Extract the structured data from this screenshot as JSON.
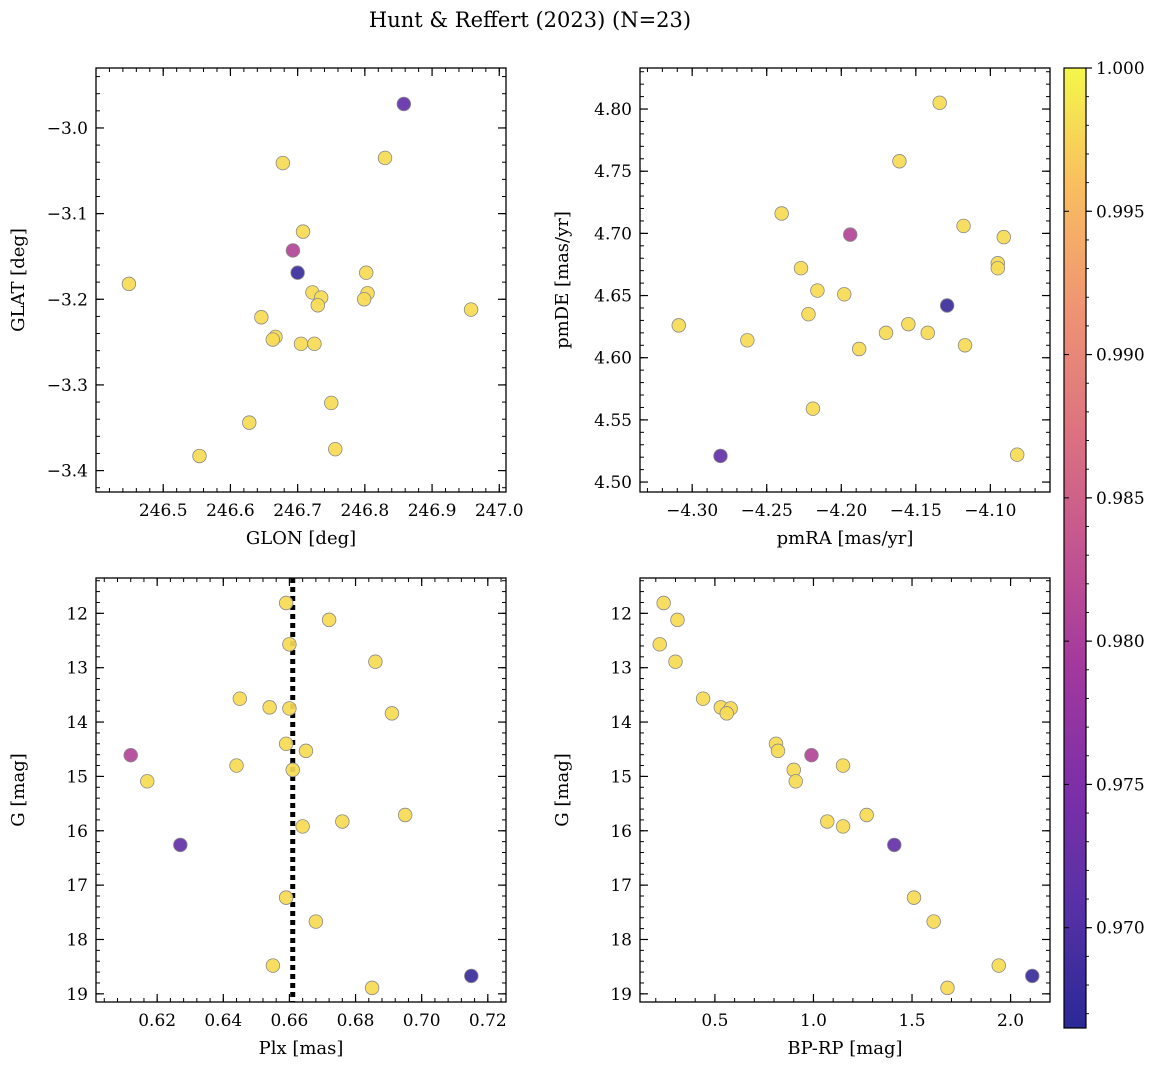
{
  "figure_title": "Hunt & Reffert (2023) (N=23)",
  "colors": {
    "plx_line": "#000000",
    "marker_edge": "#8a8a8a"
  },
  "chart_data": [
    {
      "id": "glon-glat",
      "type": "scatter",
      "xlabel": "GLON [deg]",
      "ylabel": "GLAT [deg]",
      "xlim": [
        246.4,
        247.01
      ],
      "ylim": [
        -3.425,
        -2.93
      ],
      "y_inverted": false,
      "xticks": [
        246.5,
        246.6,
        246.7,
        246.8,
        246.9,
        247.0
      ],
      "xtick_labels": [
        "246.5",
        "246.6",
        "246.7",
        "246.8",
        "246.9",
        "247.0"
      ],
      "yticks": [
        -3.4,
        -3.3,
        -3.2,
        -3.1,
        -3.0
      ],
      "ytick_labels": [
        "−3.4",
        "−3.3",
        "−3.2",
        "−3.1",
        "−3.0"
      ],
      "points": [
        {
          "x": 246.858,
          "y": -2.972,
          "p": 0.972
        },
        {
          "x": 246.83,
          "y": -3.035,
          "p": 0.998
        },
        {
          "x": 246.678,
          "y": -3.041,
          "p": 0.998
        },
        {
          "x": 246.708,
          "y": -3.121,
          "p": 0.998
        },
        {
          "x": 246.693,
          "y": -3.143,
          "p": 0.981
        },
        {
          "x": 246.7,
          "y": -3.169,
          "p": 0.968
        },
        {
          "x": 246.802,
          "y": -3.169,
          "p": 0.998
        },
        {
          "x": 246.449,
          "y": -3.182,
          "p": 0.998
        },
        {
          "x": 246.722,
          "y": -3.192,
          "p": 0.998
        },
        {
          "x": 246.804,
          "y": -3.193,
          "p": 0.998
        },
        {
          "x": 246.735,
          "y": -3.198,
          "p": 0.998
        },
        {
          "x": 246.799,
          "y": -3.2,
          "p": 0.998
        },
        {
          "x": 246.73,
          "y": -3.207,
          "p": 0.998
        },
        {
          "x": 246.958,
          "y": -3.212,
          "p": 0.998
        },
        {
          "x": 246.646,
          "y": -3.221,
          "p": 0.998
        },
        {
          "x": 246.667,
          "y": -3.244,
          "p": 0.998
        },
        {
          "x": 246.663,
          "y": -3.247,
          "p": 0.998
        },
        {
          "x": 246.705,
          "y": -3.252,
          "p": 0.998
        },
        {
          "x": 246.725,
          "y": -3.252,
          "p": 0.998
        },
        {
          "x": 246.75,
          "y": -3.321,
          "p": 0.998
        },
        {
          "x": 246.628,
          "y": -3.344,
          "p": 0.998
        },
        {
          "x": 246.756,
          "y": -3.375,
          "p": 0.998
        },
        {
          "x": 246.554,
          "y": -3.383,
          "p": 0.998
        }
      ]
    },
    {
      "id": "pmra-pmde",
      "type": "scatter",
      "xlabel": "pmRA [mas/yr]",
      "ylabel": "pmDE [mas/yr]",
      "xlim": [
        -4.335,
        -4.06
      ],
      "ylim": [
        4.492,
        4.833
      ],
      "y_inverted": false,
      "xticks": [
        -4.3,
        -4.25,
        -4.2,
        -4.15,
        -4.1
      ],
      "xtick_labels": [
        "−4.30",
        "−4.25",
        "−4.20",
        "−4.15",
        "−4.10"
      ],
      "yticks": [
        4.5,
        4.55,
        4.6,
        4.65,
        4.7,
        4.75,
        4.8
      ],
      "ytick_labels": [
        "4.50",
        "4.55",
        "4.60",
        "4.65",
        "4.70",
        "4.75",
        "4.80"
      ],
      "points": [
        {
          "x": -4.134,
          "y": 4.805,
          "p": 0.998
        },
        {
          "x": -4.161,
          "y": 4.758,
          "p": 0.998
        },
        {
          "x": -4.24,
          "y": 4.716,
          "p": 0.998
        },
        {
          "x": -4.118,
          "y": 4.706,
          "p": 0.998
        },
        {
          "x": -4.194,
          "y": 4.699,
          "p": 0.981
        },
        {
          "x": -4.091,
          "y": 4.697,
          "p": 0.998
        },
        {
          "x": -4.095,
          "y": 4.676,
          "p": 0.998
        },
        {
          "x": -4.095,
          "y": 4.672,
          "p": 0.998
        },
        {
          "x": -4.227,
          "y": 4.672,
          "p": 0.998
        },
        {
          "x": -4.216,
          "y": 4.654,
          "p": 0.998
        },
        {
          "x": -4.198,
          "y": 4.651,
          "p": 0.998
        },
        {
          "x": -4.129,
          "y": 4.642,
          "p": 0.968
        },
        {
          "x": -4.222,
          "y": 4.635,
          "p": 0.998
        },
        {
          "x": -4.155,
          "y": 4.627,
          "p": 0.998
        },
        {
          "x": -4.309,
          "y": 4.626,
          "p": 0.998
        },
        {
          "x": -4.17,
          "y": 4.62,
          "p": 0.998
        },
        {
          "x": -4.142,
          "y": 4.62,
          "p": 0.998
        },
        {
          "x": -4.263,
          "y": 4.614,
          "p": 0.998
        },
        {
          "x": -4.117,
          "y": 4.61,
          "p": 0.998
        },
        {
          "x": -4.188,
          "y": 4.607,
          "p": 0.998
        },
        {
          "x": -4.219,
          "y": 4.559,
          "p": 0.998
        },
        {
          "x": -4.082,
          "y": 4.522,
          "p": 0.998
        },
        {
          "x": -4.281,
          "y": 4.521,
          "p": 0.972
        }
      ]
    },
    {
      "id": "plx-g",
      "type": "scatter",
      "xlabel": "Plx [mas]",
      "ylabel": "G [mag]",
      "xlim": [
        0.6015,
        0.7255
      ],
      "ylim": [
        11.35,
        19.15
      ],
      "y_inverted": true,
      "vline": 0.661,
      "xticks": [
        0.62,
        0.64,
        0.66,
        0.68,
        0.7,
        0.72
      ],
      "xtick_labels": [
        "0.62",
        "0.64",
        "0.66",
        "0.68",
        "0.70",
        "0.72"
      ],
      "yticks": [
        12,
        13,
        14,
        15,
        16,
        17,
        18,
        19
      ],
      "ytick_labels": [
        "12",
        "13",
        "14",
        "15",
        "16",
        "17",
        "18",
        "19"
      ],
      "points": [
        {
          "x": 0.659,
          "y": 11.81,
          "p": 0.998
        },
        {
          "x": 0.672,
          "y": 12.12,
          "p": 0.998
        },
        {
          "x": 0.66,
          "y": 12.57,
          "p": 0.998
        },
        {
          "x": 0.686,
          "y": 12.89,
          "p": 0.998
        },
        {
          "x": 0.645,
          "y": 13.57,
          "p": 0.998
        },
        {
          "x": 0.654,
          "y": 13.73,
          "p": 0.998
        },
        {
          "x": 0.66,
          "y": 13.75,
          "p": 0.998
        },
        {
          "x": 0.691,
          "y": 13.84,
          "p": 0.998
        },
        {
          "x": 0.659,
          "y": 14.4,
          "p": 0.998
        },
        {
          "x": 0.665,
          "y": 14.53,
          "p": 0.998
        },
        {
          "x": 0.612,
          "y": 14.61,
          "p": 0.981
        },
        {
          "x": 0.644,
          "y": 14.8,
          "p": 0.998
        },
        {
          "x": 0.661,
          "y": 14.88,
          "p": 0.998
        },
        {
          "x": 0.617,
          "y": 15.09,
          "p": 0.998
        },
        {
          "x": 0.695,
          "y": 15.71,
          "p": 0.998
        },
        {
          "x": 0.676,
          "y": 15.83,
          "p": 0.998
        },
        {
          "x": 0.664,
          "y": 15.92,
          "p": 0.998
        },
        {
          "x": 0.627,
          "y": 16.26,
          "p": 0.972
        },
        {
          "x": 0.659,
          "y": 17.23,
          "p": 0.998
        },
        {
          "x": 0.668,
          "y": 17.67,
          "p": 0.998
        },
        {
          "x": 0.655,
          "y": 18.48,
          "p": 0.998
        },
        {
          "x": 0.715,
          "y": 18.67,
          "p": 0.968
        },
        {
          "x": 0.685,
          "y": 18.89,
          "p": 0.998
        }
      ]
    },
    {
      "id": "bprp-g",
      "type": "scatter",
      "xlabel": "BP-RP [mag]",
      "ylabel": "G [mag]",
      "xlim": [
        0.12,
        2.2
      ],
      "ylim": [
        11.35,
        19.15
      ],
      "y_inverted": true,
      "xticks": [
        0.5,
        1.0,
        1.5,
        2.0
      ],
      "xtick_labels": [
        "0.5",
        "1.0",
        "1.5",
        "2.0"
      ],
      "yticks": [
        12,
        13,
        14,
        15,
        16,
        17,
        18,
        19
      ],
      "ytick_labels": [
        "12",
        "13",
        "14",
        "15",
        "16",
        "17",
        "18",
        "19"
      ],
      "points": [
        {
          "x": 0.24,
          "y": 11.81,
          "p": 0.998
        },
        {
          "x": 0.31,
          "y": 12.12,
          "p": 0.998
        },
        {
          "x": 0.22,
          "y": 12.57,
          "p": 0.998
        },
        {
          "x": 0.3,
          "y": 12.89,
          "p": 0.998
        },
        {
          "x": 0.44,
          "y": 13.57,
          "p": 0.998
        },
        {
          "x": 0.53,
          "y": 13.73,
          "p": 0.998
        },
        {
          "x": 0.58,
          "y": 13.75,
          "p": 0.998
        },
        {
          "x": 0.56,
          "y": 13.84,
          "p": 0.998
        },
        {
          "x": 0.81,
          "y": 14.4,
          "p": 0.998
        },
        {
          "x": 0.82,
          "y": 14.53,
          "p": 0.998
        },
        {
          "x": 0.99,
          "y": 14.61,
          "p": 0.981
        },
        {
          "x": 1.15,
          "y": 14.8,
          "p": 0.998
        },
        {
          "x": 0.9,
          "y": 14.88,
          "p": 0.998
        },
        {
          "x": 0.91,
          "y": 15.09,
          "p": 0.998
        },
        {
          "x": 1.27,
          "y": 15.71,
          "p": 0.998
        },
        {
          "x": 1.07,
          "y": 15.83,
          "p": 0.998
        },
        {
          "x": 1.15,
          "y": 15.92,
          "p": 0.998
        },
        {
          "x": 1.41,
          "y": 16.26,
          "p": 0.972
        },
        {
          "x": 1.51,
          "y": 17.23,
          "p": 0.998
        },
        {
          "x": 1.61,
          "y": 17.67,
          "p": 0.998
        },
        {
          "x": 1.94,
          "y": 18.48,
          "p": 0.998
        },
        {
          "x": 2.11,
          "y": 18.67,
          "p": 0.968
        },
        {
          "x": 1.68,
          "y": 18.89,
          "p": 0.998
        }
      ]
    }
  ],
  "colorbar": {
    "colormap": "plasma",
    "vmin": 0.9665,
    "vmax": 1.0,
    "ticks": [
      0.97,
      0.975,
      0.98,
      0.985,
      0.99,
      0.995,
      1.0
    ],
    "tick_labels": [
      "0.970",
      "0.975",
      "0.980",
      "0.985",
      "0.990",
      "0.995",
      "1.000"
    ]
  }
}
